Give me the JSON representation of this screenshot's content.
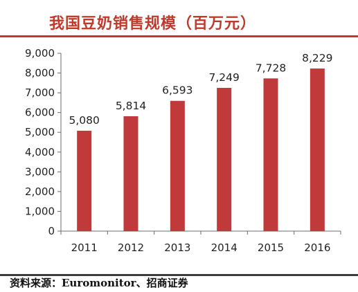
{
  "header": {
    "title": "我国豆奶销售规模（百万元）"
  },
  "footer": {
    "source": "资料来源：Euromonitor、招商证券"
  },
  "colors": {
    "bar": "#c0393b",
    "title": "#c0392b",
    "axis": "#6b6b6b"
  },
  "chart_data": {
    "type": "bar",
    "title": "我国豆奶销售规模（百万元）",
    "categories": [
      "2011",
      "2012",
      "2013",
      "2014",
      "2015",
      "2016"
    ],
    "values": [
      5080,
      5814,
      6593,
      7249,
      7728,
      8229
    ],
    "value_labels": [
      "5,080",
      "5,814",
      "6,593",
      "7,249",
      "7,728",
      "8,229"
    ],
    "ylim": [
      0,
      9000
    ],
    "yticks": [
      0,
      1000,
      2000,
      3000,
      4000,
      5000,
      6000,
      7000,
      8000,
      9000
    ],
    "ytick_labels": [
      "0",
      "1,000",
      "2,000",
      "3,000",
      "4,000",
      "5,000",
      "6,000",
      "7,000",
      "8,000",
      "9,000"
    ],
    "xlabel": "",
    "ylabel": "",
    "grid": false,
    "legend": "none"
  }
}
